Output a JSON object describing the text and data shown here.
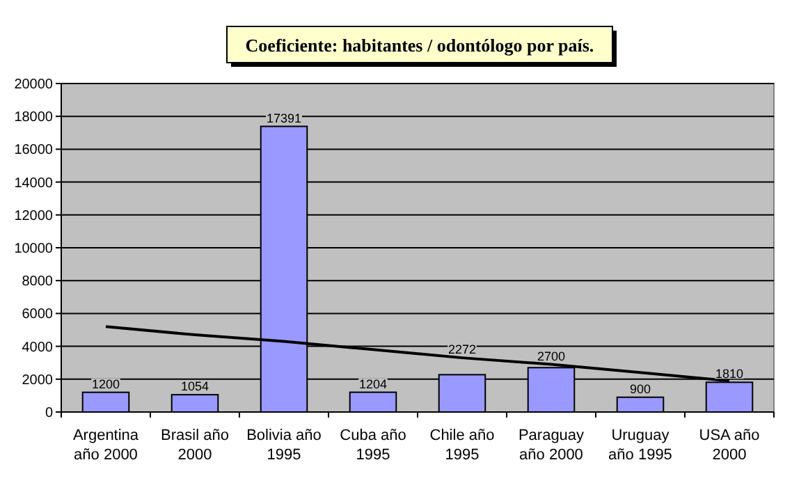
{
  "chart_data": {
    "type": "bar",
    "title": "Coeficiente: habitantes / odontólogo por  país.",
    "categories": [
      "Argentina\naño 2000",
      "Brasil año\n2000",
      "Bolivia año\n1995",
      "Cuba año\n1995",
      "Chile año\n1995",
      "Paraguay\naño 2000",
      "Uruguay\naño 1995",
      "USA año\n2000"
    ],
    "series": [
      {
        "color": "#9999ff",
        "values": [
          1200,
          1054,
          17391,
          1204,
          2272,
          2700,
          900,
          1810
        ],
        "value_labels": [
          "1200",
          "1054",
          "17391",
          "1204",
          "2272",
          "2700",
          "900",
          "1810"
        ]
      },
      {
        "type": "line",
        "color": "#000000",
        "values": [
          5200,
          4700,
          4300,
          3800,
          3300,
          2900,
          2400,
          1900
        ]
      }
    ],
    "ylim": [
      0,
      20000
    ],
    "yticks": [
      0,
      2000,
      4000,
      6000,
      8000,
      10000,
      12000,
      14000,
      16000,
      18000,
      20000
    ],
    "grid": "y",
    "marker": "none"
  }
}
